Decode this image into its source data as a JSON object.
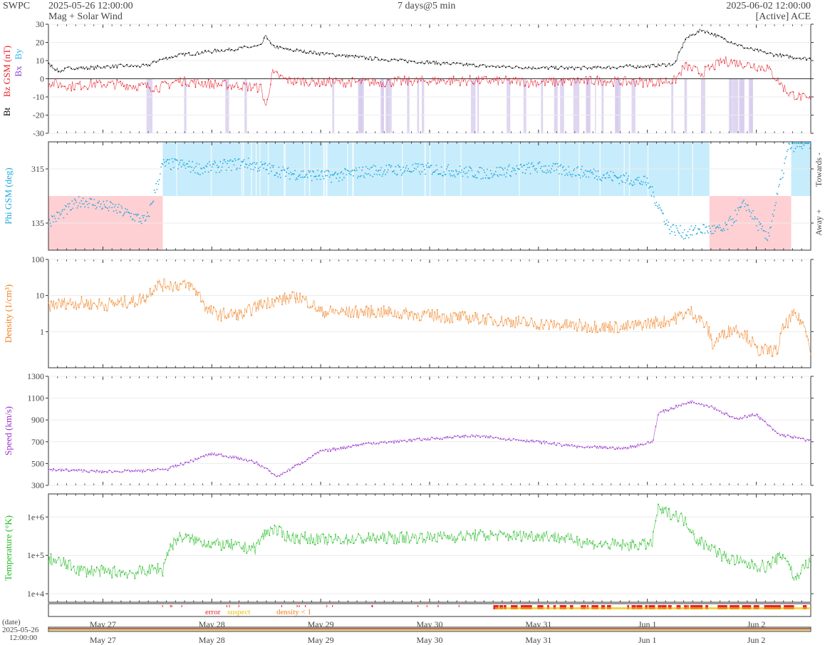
{
  "header": {
    "brand": "SWPC",
    "start": "2025-05-26 12:00:00",
    "subtitle": "Mag + Solar Wind",
    "span": "7 days@5 min",
    "end": "2025-06-02 12:00:00",
    "source": "[Active] ACE"
  },
  "colors": {
    "bt": "#000000",
    "bz": "#e8202a",
    "bx": "#8a3fd6",
    "by": "#2bb5e8",
    "phi": "#22aadd",
    "phi_towards": "#c7ecfb",
    "phi_away": "#ffd0d3",
    "density": "#f08020",
    "speed": "#9933cc",
    "temperature": "#22bb22",
    "error": "#e8202a",
    "suspect": "#f0c000",
    "density_flag": "#f08020"
  },
  "x_axis": {
    "range": [
      "2025-05-26 12:00",
      "2025-06-02 12:00"
    ],
    "ticks": [
      "May 27",
      "May 28",
      "May 29",
      "May 30",
      "May 31",
      "Jun 1",
      "Jun 2"
    ]
  },
  "flags": {
    "error": "error",
    "suspect": "suspect",
    "density": "density < 1"
  },
  "footer": {
    "date_label": "(date)",
    "date_value": "2025-05-26",
    "time_value": "12:00:00"
  },
  "chart_data": [
    {
      "type": "line",
      "ylabel": "Bz GSM (nT)",
      "ylabel_prefix": "Bt",
      "legend_lower": [
        "Bx",
        "By"
      ],
      "ylim": [
        -30,
        30
      ],
      "yticks": [
        30,
        20,
        10,
        0,
        -10,
        -20,
        -30
      ],
      "x_days": [
        0,
        0.1,
        0.2,
        0.4,
        0.6,
        0.8,
        0.9,
        1.0,
        1.2,
        1.5,
        1.8,
        1.95,
        2.0,
        2.05,
        2.2,
        2.5,
        3.0,
        3.5,
        4.0,
        4.5,
        5.0,
        5.5,
        5.75,
        5.85,
        6.0,
        6.2,
        6.4,
        6.6,
        6.8,
        7.0
      ],
      "series": [
        {
          "name": "Bt",
          "values": [
            8,
            4,
            6,
            6,
            7,
            7,
            7,
            10,
            13,
            15,
            17,
            18,
            24,
            18,
            16,
            14,
            11,
            9,
            7,
            6,
            6,
            7,
            8,
            22,
            27,
            22,
            17,
            14,
            12,
            11
          ]
        },
        {
          "name": "Bz",
          "values": [
            -2,
            -3,
            -4,
            -3,
            -3,
            -4,
            -4,
            -5,
            -1,
            -3,
            -4,
            -5,
            -16,
            3,
            -1,
            -2,
            -2,
            -1,
            -1,
            -2,
            -1,
            -2,
            -1,
            7,
            3,
            10,
            8,
            6,
            -8,
            -12
          ]
        }
      ]
    },
    {
      "type": "scatter",
      "ylabel": "Phi GSM (deg)",
      "right_labels": [
        "Towards -",
        "Away +"
      ],
      "ylim": [
        45,
        405
      ],
      "yticks": [
        315,
        135
      ],
      "x_days": [
        0,
        0.1,
        0.3,
        0.6,
        0.9,
        1.05,
        1.2,
        1.4,
        1.8,
        2.2,
        2.6,
        3.0,
        3.5,
        4.0,
        4.5,
        5.0,
        5.5,
        5.7,
        5.85,
        6.0,
        6.2,
        6.4,
        6.6,
        6.8,
        7.0
      ],
      "values": [
        140,
        160,
        210,
        185,
        140,
        330,
        330,
        315,
        335,
        300,
        290,
        310,
        315,
        300,
        320,
        300,
        270,
        120,
        100,
        115,
        110,
        200,
        80,
        390,
        400
      ],
      "regions": [
        {
          "name": "Away +",
          "from": 0.0,
          "to": 1.05
        },
        {
          "name": "Towards -",
          "from": 1.05,
          "to": 6.07
        },
        {
          "name": "Away +",
          "from": 6.07,
          "to": 6.82
        },
        {
          "name": "Towards -",
          "from": 6.82,
          "to": 7.0
        }
      ]
    },
    {
      "type": "line",
      "ylabel": "Density (1/cm³)",
      "yscale": "log",
      "ylim": [
        0.1,
        100
      ],
      "yticks": [
        "100",
        "10",
        "1"
      ],
      "x_days": [
        0,
        0.2,
        0.5,
        0.8,
        0.9,
        1.0,
        1.3,
        1.45,
        1.55,
        1.8,
        2.0,
        2.3,
        2.5,
        3.0,
        3.5,
        4.0,
        4.5,
        5.0,
        5.3,
        5.7,
        5.9,
        6.1,
        6.3,
        6.5,
        6.7,
        6.85,
        7.0
      ],
      "values": [
        5,
        6.5,
        5.5,
        7,
        9,
        20,
        19,
        4,
        3,
        3,
        6.5,
        9,
        3.5,
        3.5,
        2.8,
        2.2,
        1.6,
        1.4,
        1.3,
        2,
        3.5,
        0.4,
        1.3,
        0.3,
        0.3,
        3,
        0.3
      ]
    },
    {
      "type": "line",
      "ylabel": "Speed (km/s)",
      "ylim": [
        300,
        1300
      ],
      "yticks": [
        1300,
        1100,
        900,
        700,
        500,
        300
      ],
      "x_days": [
        0,
        0.5,
        0.9,
        1.1,
        1.5,
        1.7,
        1.9,
        2.0,
        2.1,
        2.5,
        2.9,
        3.4,
        3.9,
        4.4,
        4.9,
        5.3,
        5.55,
        5.6,
        5.9,
        6.1,
        6.3,
        6.5,
        6.7,
        7.0
      ],
      "values": [
        445,
        425,
        435,
        450,
        590,
        560,
        510,
        450,
        380,
        610,
        680,
        720,
        755,
        710,
        650,
        640,
        700,
        960,
        1070,
        1020,
        910,
        950,
        770,
        710
      ]
    },
    {
      "type": "line",
      "ylabel": "Temperature (°K)",
      "yscale": "log",
      "ylim": [
        6000,
        4000000
      ],
      "yticks": [
        "1e+6",
        "1e+5",
        "1e+4"
      ],
      "x_days": [
        0,
        0.3,
        0.8,
        1.0,
        1.05,
        1.2,
        1.5,
        1.9,
        2.05,
        2.2,
        2.6,
        3.0,
        3.5,
        4.0,
        4.6,
        5.0,
        5.3,
        5.55,
        5.6,
        5.8,
        5.95,
        6.2,
        6.4,
        6.6,
        6.75,
        6.85,
        7.0
      ],
      "values": [
        80000,
        40000,
        35000,
        45000,
        40000,
        300000,
        200000,
        150000,
        500000,
        300000,
        250000,
        280000,
        300000,
        330000,
        320000,
        200000,
        180000,
        200000,
        1500000,
        1000000,
        250000,
        90000,
        60000,
        50000,
        100000,
        20000,
        70000
      ]
    }
  ]
}
